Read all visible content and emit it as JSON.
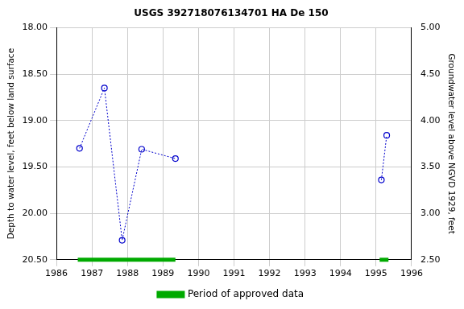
{
  "chart_data": {
    "type": "scatter",
    "title": "USGS 392718076134701 HA De 150",
    "y_label": "Depth to water level, feet below land surface",
    "y2_label": "Groundwater level above NGVD 1929, feet",
    "xlim": [
      1986,
      1996
    ],
    "xticks": [
      1986,
      1987,
      1988,
      1989,
      1990,
      1991,
      1992,
      1993,
      1994,
      1995,
      1996
    ],
    "ylim": [
      18,
      20.5
    ],
    "log": false,
    "yticks": [
      {
        "value": 18,
        "label": "18.00"
      },
      {
        "value": 18.5,
        "label": "18.50"
      },
      {
        "value": 19,
        "label": "19.00"
      },
      {
        "value": 19.5,
        "label": "19.50"
      },
      {
        "value": 20,
        "label": "20.00"
      },
      {
        "value": 20.5,
        "label": "20.50"
      }
    ],
    "y2lim": [
      2.5,
      5
    ],
    "y2ticks": [
      {
        "value": 2.5,
        "label": "2.50"
      },
      {
        "value": 3,
        "label": "3.00"
      },
      {
        "value": 3.5,
        "label": "3.50"
      },
      {
        "value": 4,
        "label": "4.00"
      },
      {
        "value": 4.5,
        "label": "4.50"
      },
      {
        "value": 5,
        "label": "5.00"
      }
    ],
    "grid": true,
    "legend": "bottom",
    "series": [
      {
        "color": "#0000cc",
        "marker": "circle",
        "line_style": "dotted",
        "x": [
          1986.65,
          1987.35,
          1987.85,
          1988.4,
          1989.35
        ],
        "values": [
          19.3,
          18.65,
          20.29,
          19.31,
          19.41
        ]
      },
      {
        "color": "#0000cc",
        "marker": "circle",
        "line_style": "dotted",
        "x": [
          1995.15,
          1995.3
        ],
        "values": [
          19.64,
          19.16
        ]
      }
    ],
    "approved_periods": {
      "name": "Period of approved data",
      "color": "#00aa00",
      "ranges": [
        [
          1986.6,
          1989.35
        ],
        [
          1995.1,
          1995.35
        ]
      ]
    }
  }
}
